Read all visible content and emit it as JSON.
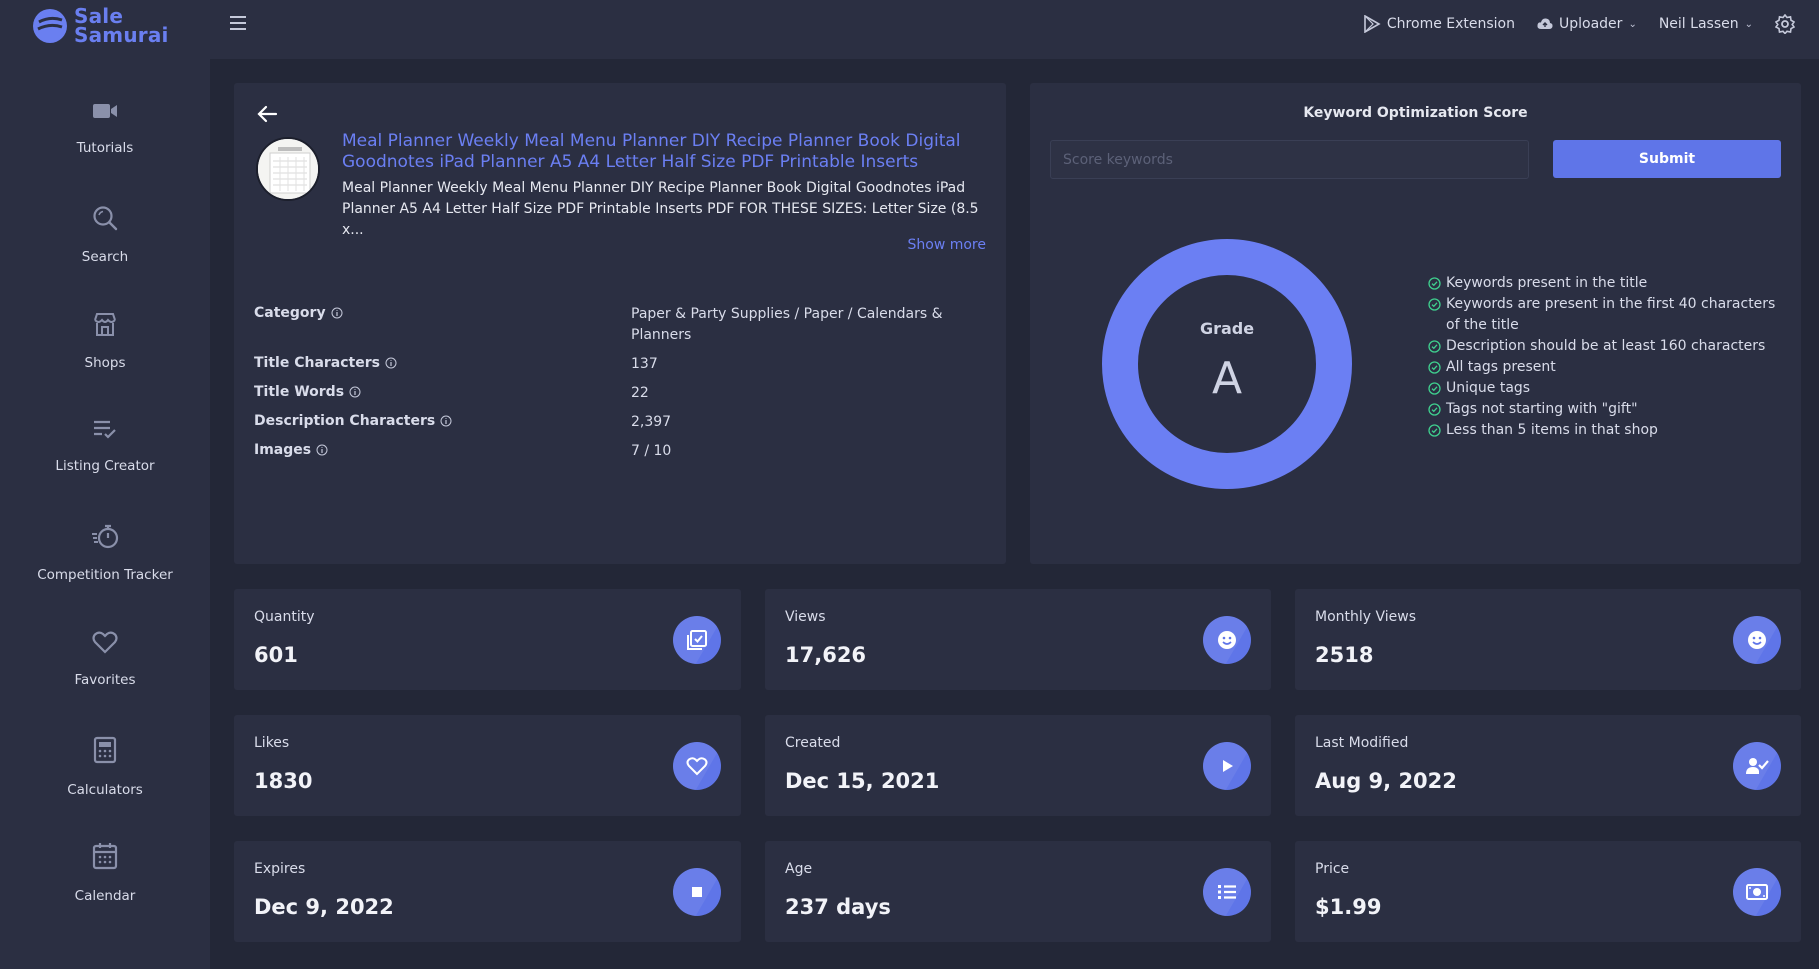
{
  "brand": {
    "line1": "Sale",
    "line2": "Samurai",
    "color": "#6a7ff0"
  },
  "sidebar": {
    "items": [
      {
        "label": "Tutorials",
        "icon": "video-camera-icon"
      },
      {
        "label": "Search",
        "icon": "search-icon"
      },
      {
        "label": "Shops",
        "icon": "store-icon"
      },
      {
        "label": "Listing Creator",
        "icon": "list-check-icon"
      },
      {
        "label": "Competition Tracker",
        "icon": "stopwatch-icon"
      },
      {
        "label": "Favorites",
        "icon": "heart-icon"
      },
      {
        "label": "Calculators",
        "icon": "calculator-icon"
      },
      {
        "label": "Calendar",
        "icon": "calendar-icon"
      }
    ]
  },
  "topbar": {
    "chrome_extension": "Chrome Extension",
    "uploader": "Uploader",
    "user": "Neil Lassen"
  },
  "listing": {
    "title": "Meal Planner Weekly Meal Menu Planner DIY Recipe Planner Book Digital Goodnotes iPad Planner A5 A4 Letter Half Size PDF Printable Inserts",
    "description": "Meal Planner Weekly Meal Menu Planner DIY Recipe Planner Book Digital Goodnotes iPad Planner A5 A4 Letter Half Size PDF Printable Inserts PDF FOR THESE SIZES: Letter Size (8.5 x...",
    "show_more": "Show more",
    "attributes": [
      {
        "label": "Category",
        "value": "Paper & Party Supplies / Paper / Calendars & Planners"
      },
      {
        "label": "Title Characters",
        "value": "137"
      },
      {
        "label": "Title Words",
        "value": "22"
      },
      {
        "label": "Description Characters",
        "value": "2,397"
      },
      {
        "label": "Images",
        "value": "7 / 10"
      }
    ]
  },
  "keyword": {
    "title": "Keyword Optimization Score",
    "placeholder": "Score keywords",
    "submit": "Submit",
    "grade_label": "Grade",
    "grade": "A",
    "checks": [
      "Keywords present in the title",
      "Keywords are present in the first 40 characters of the title",
      "Description should be at least 160 characters",
      "All tags present",
      "Unique tags",
      "Tags not starting with \"gift\"",
      "Less than 5 items in that shop"
    ],
    "accent": "#6b7ff3",
    "check_color": "#3fcf8e"
  },
  "stats": [
    {
      "label": "Quantity",
      "value": "601",
      "icon": "checklist-icon"
    },
    {
      "label": "Views",
      "value": "17,626",
      "icon": "smiley-icon"
    },
    {
      "label": "Monthly Views",
      "value": "2518",
      "icon": "smiley-icon"
    },
    {
      "label": "Likes",
      "value": "1830",
      "icon": "heart-icon"
    },
    {
      "label": "Created",
      "value": "Dec 15, 2021",
      "icon": "play-icon"
    },
    {
      "label": "Last Modified",
      "value": "Aug 9, 2022",
      "icon": "user-check-icon"
    },
    {
      "label": "Expires",
      "value": "Dec 9, 2022",
      "icon": "stop-icon"
    },
    {
      "label": "Age",
      "value": "237 days",
      "icon": "list-icon"
    },
    {
      "label": "Price",
      "value": "$1.99",
      "icon": "money-icon"
    }
  ]
}
